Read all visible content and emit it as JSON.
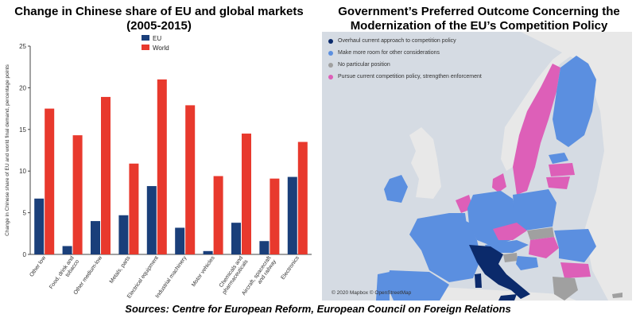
{
  "left_panel": {
    "title_line1": "Change in Chinese share of EU and global markets",
    "title_line2": "(2005-2015)"
  },
  "right_panel": {
    "title_line1": "Government’s Preferred Outcome Concerning the",
    "title_line2": "Modernization of the EU’s Competition Policy",
    "legend": [
      {
        "label": "Overhaul current approach to competition policy",
        "color": "#0b2a6b"
      },
      {
        "label": "Make more room for other considerations",
        "color": "#5b8fe0"
      },
      {
        "label": "No particular position",
        "color": "#a0a0a0"
      },
      {
        "label": "Pursue current competition policy, strengthen enforcement",
        "color": "#dd5fb8"
      }
    ],
    "attribution": "© 2020 Mapbox  © OpenStreetMap"
  },
  "sources": "Sources: Centre for European Reform, European Council on Foreign Relations",
  "colors": {
    "eu": "#1a3f7a",
    "world": "#e8392d",
    "sea": "#d5dbe3",
    "land_other": "#e8e8e8"
  },
  "map_colors": {
    "overhaul": "#0b2a6b",
    "more_room": "#5b8fe0",
    "no_position": "#a0a0a0",
    "pursue": "#dd5fb8"
  },
  "chart_data": {
    "type": "bar",
    "title": "Change in Chinese share of EU and global markets (2005-2015)",
    "ylabel": "Change in Chinese share of EU and world final demand, percentage points",
    "xlabel": "",
    "ylim": [
      0,
      25
    ],
    "yticks": [
      0,
      5,
      10,
      15,
      20,
      25
    ],
    "legend_position": "top-center",
    "grid": false,
    "categories": [
      "Other low",
      "Food, drink and tobacco",
      "Other medium-low",
      "Metals, parts",
      "Electrical equipment",
      "Industrial machinery",
      "Motor vehicles",
      "Chemicals and pharmaceuticals",
      "Aircraft, spacecraft and railway",
      "Electronics"
    ],
    "category_lines": [
      [
        "Other low"
      ],
      [
        "Food, drink and",
        "tobacco"
      ],
      [
        "Other medium-low"
      ],
      [
        "Metals, parts"
      ],
      [
        "Electrical equipment"
      ],
      [
        "Industrial machinery"
      ],
      [
        "Motor vehicles"
      ],
      [
        "Chemicals and",
        "pharmaceuticals"
      ],
      [
        "Aircraft, spacecraft",
        "and railway"
      ],
      [
        "Electronics"
      ]
    ],
    "series": [
      {
        "name": "EU",
        "values": [
          6.7,
          1.0,
          4.0,
          4.7,
          8.2,
          3.2,
          0.4,
          3.8,
          1.6,
          9.3
        ]
      },
      {
        "name": "World",
        "values": [
          17.5,
          14.3,
          18.9,
          10.9,
          21.0,
          17.9,
          9.4,
          14.5,
          9.1,
          13.5
        ]
      }
    ]
  }
}
